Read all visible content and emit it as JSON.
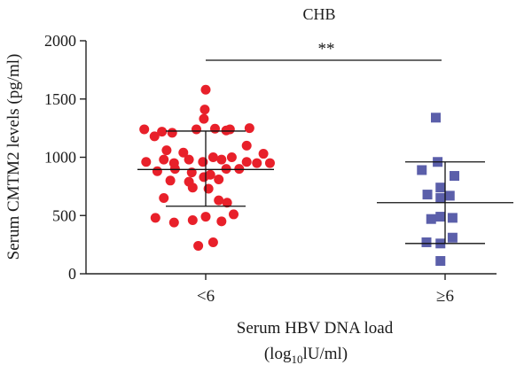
{
  "chart_data": {
    "type": "scatter",
    "title": "CHB",
    "ylabel": "Serum CMTM2 levels (pg/ml)",
    "xlabel_line1": "Serum HBV DNA load",
    "xlabel_line2_prefix": "(log",
    "xlabel_line2_sub": "10",
    "xlabel_line2_suffix": "lU/ml)",
    "ylim": [
      0,
      2000
    ],
    "yticks": [
      0,
      500,
      1000,
      1500,
      2000
    ],
    "categories": [
      "<6",
      "≥6"
    ],
    "significance": "**",
    "series": [
      {
        "category": "<6",
        "marker": "circle",
        "color": "#e8202a",
        "mean": 895,
        "sd_upper": 1225,
        "sd_lower": 580,
        "points": [
          [
            -0.66,
            1240
          ],
          [
            -0.47,
            1220
          ],
          [
            -0.36,
            1210
          ],
          [
            -0.1,
            1240
          ],
          [
            0.1,
            1245
          ],
          [
            0.26,
            1240
          ],
          [
            0.47,
            1250
          ],
          [
            -0.55,
            1180
          ],
          [
            -0.02,
            1330
          ],
          [
            -0.01,
            1410
          ],
          [
            0.0,
            1580
          ],
          [
            0.22,
            1230
          ],
          [
            -0.42,
            1060
          ],
          [
            -0.24,
            1040
          ],
          [
            0.44,
            1100
          ],
          [
            0.62,
            1030
          ],
          [
            -0.64,
            960
          ],
          [
            -0.45,
            980
          ],
          [
            -0.34,
            950
          ],
          [
            -0.18,
            980
          ],
          [
            -0.03,
            960
          ],
          [
            0.08,
            1000
          ],
          [
            0.17,
            980
          ],
          [
            0.28,
            1000
          ],
          [
            0.44,
            960
          ],
          [
            0.55,
            950
          ],
          [
            0.69,
            950
          ],
          [
            -0.52,
            880
          ],
          [
            -0.33,
            900
          ],
          [
            -0.15,
            870
          ],
          [
            0.05,
            850
          ],
          [
            0.22,
            900
          ],
          [
            0.36,
            900
          ],
          [
            -0.38,
            800
          ],
          [
            -0.18,
            790
          ],
          [
            -0.02,
            830
          ],
          [
            0.14,
            810
          ],
          [
            -0.45,
            650
          ],
          [
            -0.14,
            740
          ],
          [
            0.03,
            730
          ],
          [
            0.14,
            630
          ],
          [
            0.23,
            610
          ],
          [
            -0.54,
            480
          ],
          [
            -0.34,
            440
          ],
          [
            -0.14,
            460
          ],
          [
            0.0,
            490
          ],
          [
            0.17,
            450
          ],
          [
            0.3,
            510
          ],
          [
            -0.08,
            240
          ],
          [
            0.08,
            270
          ]
        ]
      },
      {
        "category": "≥6",
        "marker": "square",
        "color": "#5b5faa",
        "mean": 610,
        "sd_upper": 960,
        "sd_lower": 260,
        "points": [
          [
            -0.1,
            1340
          ],
          [
            -0.25,
            890
          ],
          [
            -0.08,
            960
          ],
          [
            0.1,
            840
          ],
          [
            -0.19,
            680
          ],
          [
            -0.05,
            740
          ],
          [
            0.05,
            670
          ],
          [
            -0.05,
            650
          ],
          [
            -0.15,
            470
          ],
          [
            -0.05,
            490
          ],
          [
            0.08,
            480
          ],
          [
            -0.2,
            270
          ],
          [
            -0.05,
            260
          ],
          [
            0.08,
            310
          ],
          [
            -0.05,
            110
          ]
        ]
      }
    ]
  }
}
